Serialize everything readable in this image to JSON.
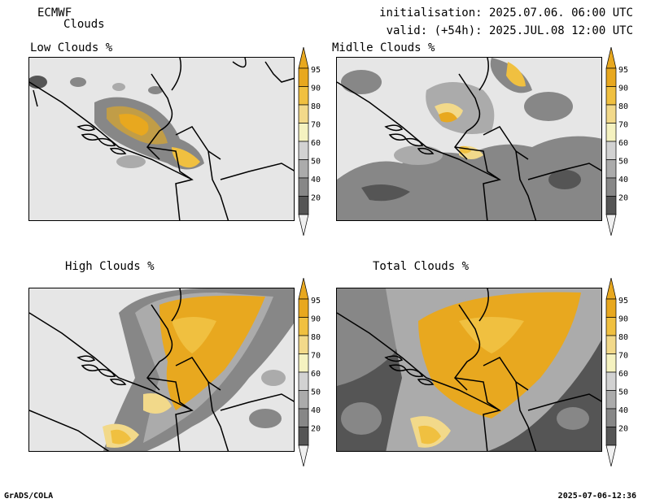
{
  "header": {
    "model": "ECMWF",
    "product": "Clouds",
    "init_line": "initialisation: 2025.07.06. 06:00 UTC",
    "valid_line": "valid: (+54h): 2025.JUL.08 12:00 UTC"
  },
  "panels": [
    {
      "title": "Low Clouds %"
    },
    {
      "title": "Midlle Clouds %"
    },
    {
      "title": "High Clouds %"
    },
    {
      "title": "Total Clouds %"
    }
  ],
  "colorbar": {
    "levels": [
      "95",
      "90",
      "80",
      "70",
      "60",
      "50",
      "40",
      "20"
    ],
    "colors": [
      "#e8a81f",
      "#f0c040",
      "#f2d98a",
      "#f5f2c0",
      "#d2d2d2",
      "#ababab",
      "#878787",
      "#555555"
    ],
    "top_arrow_color": "#e8a81f",
    "bottom_arrow_color": "#f0f0f0"
  },
  "footer": {
    "left": "GrADS/COLA",
    "right": "2025-07-06-12:36"
  }
}
